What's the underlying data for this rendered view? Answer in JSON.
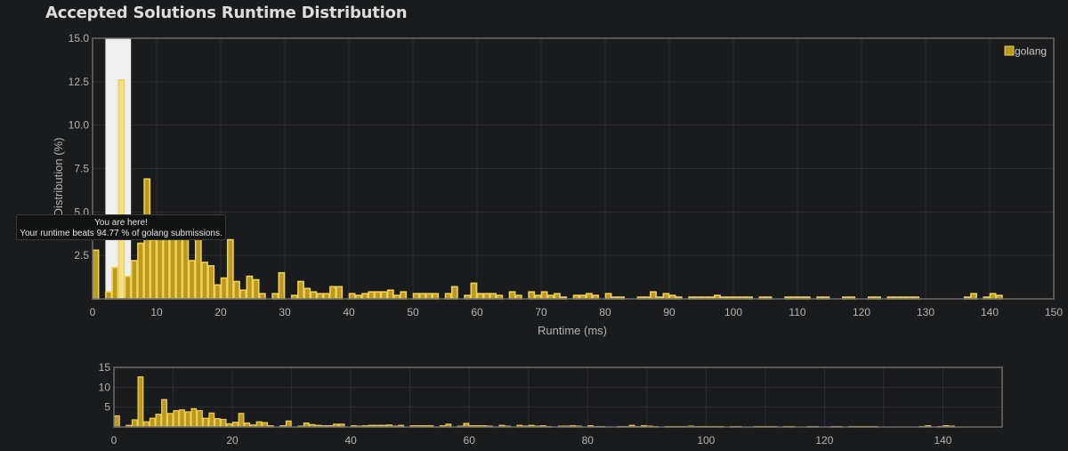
{
  "title": "Accepted Solutions Runtime Distribution",
  "colors": {
    "bar_fill": "#b89a1e",
    "bar_stroke": "#f2cf55",
    "highlight_fill": "#f6e08c",
    "highlight_band": "#efefef",
    "grid": "#2c2d30",
    "frame": "#6b6b6b",
    "background": "#1a1b1d"
  },
  "tooltip": {
    "line1": "You are here!",
    "line2": "Your runtime beats 94.77 % of golang submissions."
  },
  "chart_data": [
    {
      "type": "bar",
      "xlabel": "Runtime (ms)",
      "ylabel": "Distribution (%)",
      "xlim": [
        0,
        150
      ],
      "ylim": [
        0,
        15
      ],
      "xticks": [
        "0",
        "10",
        "20",
        "30",
        "40",
        "50",
        "60",
        "70",
        "80",
        "90",
        "100",
        "110",
        "120",
        "130",
        "140",
        "150"
      ],
      "yticks": [
        "2.5",
        "5.0",
        "7.5",
        "10.0",
        "12.5",
        "15.0"
      ],
      "grid": true,
      "legend": "top-right",
      "series": [
        {
          "name": "golang",
          "x": [
            0,
            2,
            3,
            4,
            5,
            6,
            7,
            8,
            9,
            10,
            11,
            12,
            13,
            14,
            15,
            16,
            17,
            18,
            19,
            20,
            21,
            22,
            23,
            24,
            25,
            26,
            28,
            29,
            31,
            32,
            33,
            34,
            35,
            36,
            37,
            38,
            40,
            41,
            42,
            43,
            44,
            45,
            46,
            47,
            48,
            50,
            51,
            52,
            53,
            55,
            56,
            58,
            59,
            60,
            61,
            62,
            63,
            65,
            66,
            68,
            69,
            70,
            71,
            72,
            73,
            75,
            76,
            77,
            78,
            80,
            81,
            82,
            85,
            86,
            87,
            88,
            89,
            90,
            91,
            93,
            94,
            95,
            96,
            97,
            98,
            99,
            100,
            101,
            102,
            104,
            105,
            108,
            109,
            110,
            111,
            113,
            114,
            117,
            118,
            121,
            122,
            124,
            125,
            126,
            127,
            128,
            136,
            137,
            139,
            140,
            141
          ],
          "values": [
            2.8,
            0.4,
            1.8,
            12.6,
            1.3,
            2.2,
            3.2,
            6.9,
            3.4,
            4.1,
            4.3,
            3.8,
            4.6,
            4.1,
            2.2,
            3.5,
            2.1,
            1.9,
            0.8,
            1.2,
            3.4,
            1.0,
            0.5,
            1.3,
            1.1,
            0.3,
            0.3,
            1.5,
            0.2,
            1.0,
            0.6,
            0.4,
            0.3,
            0.3,
            0.7,
            0.7,
            0.3,
            0.2,
            0.3,
            0.4,
            0.4,
            0.4,
            0.5,
            0.2,
            0.4,
            0.3,
            0.3,
            0.3,
            0.3,
            0.3,
            0.7,
            0.2,
            0.9,
            0.3,
            0.3,
            0.3,
            0.2,
            0.4,
            0.2,
            0.4,
            0.2,
            0.4,
            0.2,
            0.3,
            0.1,
            0.2,
            0.2,
            0.3,
            0.2,
            0.3,
            0.1,
            0.1,
            0.1,
            0.1,
            0.4,
            0.1,
            0.3,
            0.2,
            0.1,
            0.1,
            0.1,
            0.1,
            0.1,
            0.2,
            0.1,
            0.1,
            0.1,
            0.1,
            0.1,
            0.1,
            0.1,
            0.1,
            0.1,
            0.1,
            0.1,
            0.1,
            0.1,
            0.1,
            0.1,
            0.1,
            0.1,
            0.1,
            0.1,
            0.1,
            0.1,
            0.1,
            0.1,
            0.3,
            0.1,
            0.3,
            0.2
          ]
        }
      ],
      "highlight": {
        "x": 4,
        "range": [
          2,
          6
        ]
      }
    },
    {
      "type": "bar",
      "xlim": [
        0,
        150
      ],
      "ylim": [
        0,
        15
      ],
      "xticks": [
        "0",
        "20",
        "40",
        "60",
        "80",
        "100",
        "120",
        "140"
      ],
      "yticks": [
        "5",
        "10",
        "15"
      ],
      "grid": true
    }
  ]
}
